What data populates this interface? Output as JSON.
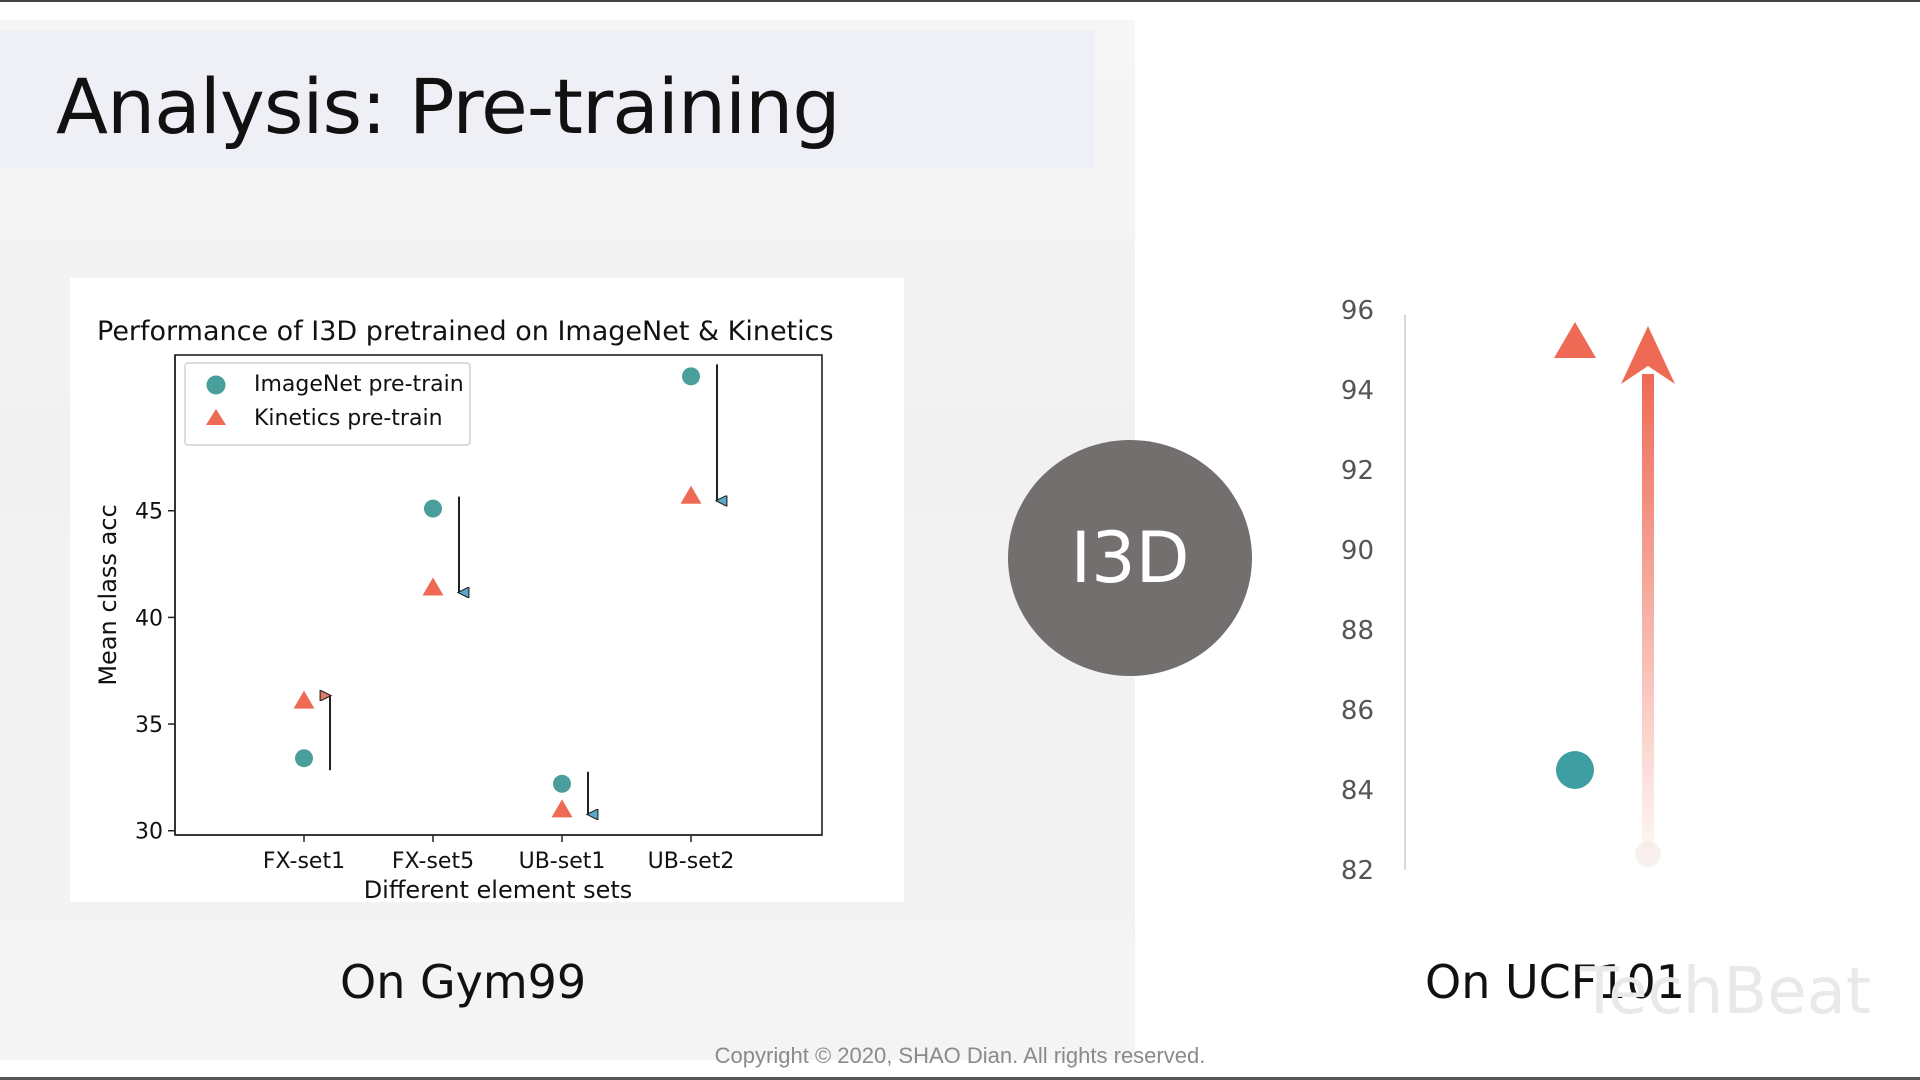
{
  "slide": {
    "title": "Analysis: Pre-training",
    "center_badge": "I3D",
    "caption_left": "On Gym99",
    "caption_right": "On UCF101",
    "watermark": "TechBeat",
    "copyright": "Copyright © 2020, SHAO Dian. All rights reserved."
  },
  "chart_data": [
    {
      "type": "scatter",
      "title": "Performance of I3D pretrained on ImageNet & Kinetics",
      "xlabel": "Different element sets",
      "ylabel": "Mean class acc",
      "categories": [
        "FX-set1",
        "FX-set5",
        "UB-set1",
        "UB-set2"
      ],
      "yticks": [
        30,
        35,
        40,
        45
      ],
      "ylim": [
        29.8,
        52.3
      ],
      "legend": "top-left",
      "grid": false,
      "series": [
        {
          "name": "ImageNet pre-train",
          "marker": "circle",
          "color": "#4a9e9b",
          "values": [
            33.4,
            45.1,
            32.2,
            51.3
          ]
        },
        {
          "name": "Kinetics pre-train",
          "marker": "triangle",
          "color": "#ee6a55",
          "values": [
            36.1,
            41.4,
            31.0,
            45.7
          ]
        }
      ],
      "change_arrows": [
        {
          "category": "FX-set1",
          "direction": "up",
          "color": "#e07a6a"
        },
        {
          "category": "FX-set5",
          "direction": "down",
          "color": "#5aa9c9"
        },
        {
          "category": "UB-set1",
          "direction": "down",
          "color": "#5aa9c9"
        },
        {
          "category": "UB-set2",
          "direction": "down",
          "color": "#5aa9c9"
        }
      ]
    },
    {
      "type": "scatter",
      "yticks": [
        82,
        84,
        86,
        88,
        90,
        92,
        94,
        96
      ],
      "ylim": [
        82,
        96
      ],
      "grid": false,
      "points": [
        {
          "marker": "triangle",
          "color": "#ee6a55",
          "value": 95.2
        },
        {
          "marker": "circle",
          "color": "#3f9ea1",
          "value": 84.5
        }
      ],
      "improvement_arrow": {
        "from": 82.4,
        "to": 95.4,
        "color": "#ee6a55"
      }
    }
  ]
}
